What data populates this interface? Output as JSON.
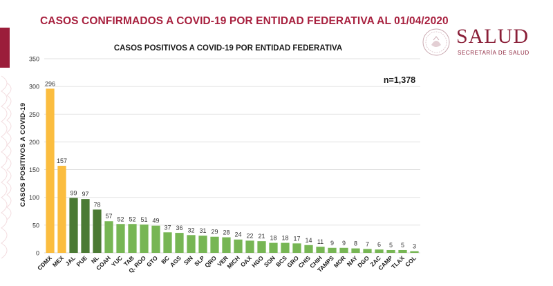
{
  "slide": {
    "title": "CASOS CONFIRMADOS A COVID-19 POR ENTIDAD FEDERATIVA AL 01/04/2020"
  },
  "logo": {
    "title": "SALUD",
    "subtitle": "SECRETARÍA DE SALUD",
    "colors": {
      "brand": "#8a1f38"
    }
  },
  "colors": {
    "title": "#a8213f",
    "accent_bar": "#9b1d3a",
    "bar_orange": "#fbbd3f",
    "bar_dark_green": "#4b7a34",
    "bar_light_green": "#77b654",
    "gridline": "#d9d9d9",
    "axis_text": "#333333"
  },
  "chart_data": {
    "type": "bar",
    "title": "CASOS POSITIVOS A COVID-19 POR ENTIDAD FEDERATIVA",
    "ylabel": "CASOS POSITIVOS A COVID-19",
    "xlabel": "",
    "ylim": [
      0,
      350
    ],
    "yticks": [
      0,
      50,
      100,
      150,
      200,
      250,
      300,
      350
    ],
    "grid": true,
    "annotation": "n=1,378",
    "categories": [
      "CDMX",
      "MEX",
      "JAL",
      "PUE",
      "NL",
      "COAH",
      "YUC",
      "TAB",
      "Q. ROO",
      "GTO",
      "BC",
      "AGS",
      "SIN",
      "SLP",
      "QRO",
      "VER",
      "MICH",
      "OAX",
      "HGO",
      "SON",
      "BCS",
      "GRO",
      "CHIS",
      "CHIH",
      "TAMPS",
      "MOR",
      "NAY",
      "DGO",
      "ZAC",
      "CAMP",
      "TLAX",
      "COL"
    ],
    "values": [
      296,
      157,
      99,
      97,
      78,
      57,
      52,
      52,
      51,
      49,
      37,
      36,
      32,
      31,
      29,
      28,
      24,
      22,
      21,
      18,
      18,
      17,
      14,
      11,
      9,
      9,
      8,
      7,
      6,
      5,
      5,
      3
    ],
    "bar_colors": [
      "#fbbd3f",
      "#fbbd3f",
      "#4b7a34",
      "#4b7a34",
      "#4b7a34",
      "#77b654",
      "#77b654",
      "#77b654",
      "#77b654",
      "#77b654",
      "#77b654",
      "#77b654",
      "#77b654",
      "#77b654",
      "#77b654",
      "#77b654",
      "#77b654",
      "#77b654",
      "#77b654",
      "#77b654",
      "#77b654",
      "#77b654",
      "#77b654",
      "#77b654",
      "#77b654",
      "#77b654",
      "#77b654",
      "#77b654",
      "#77b654",
      "#77b654",
      "#77b654",
      "#77b654"
    ]
  }
}
